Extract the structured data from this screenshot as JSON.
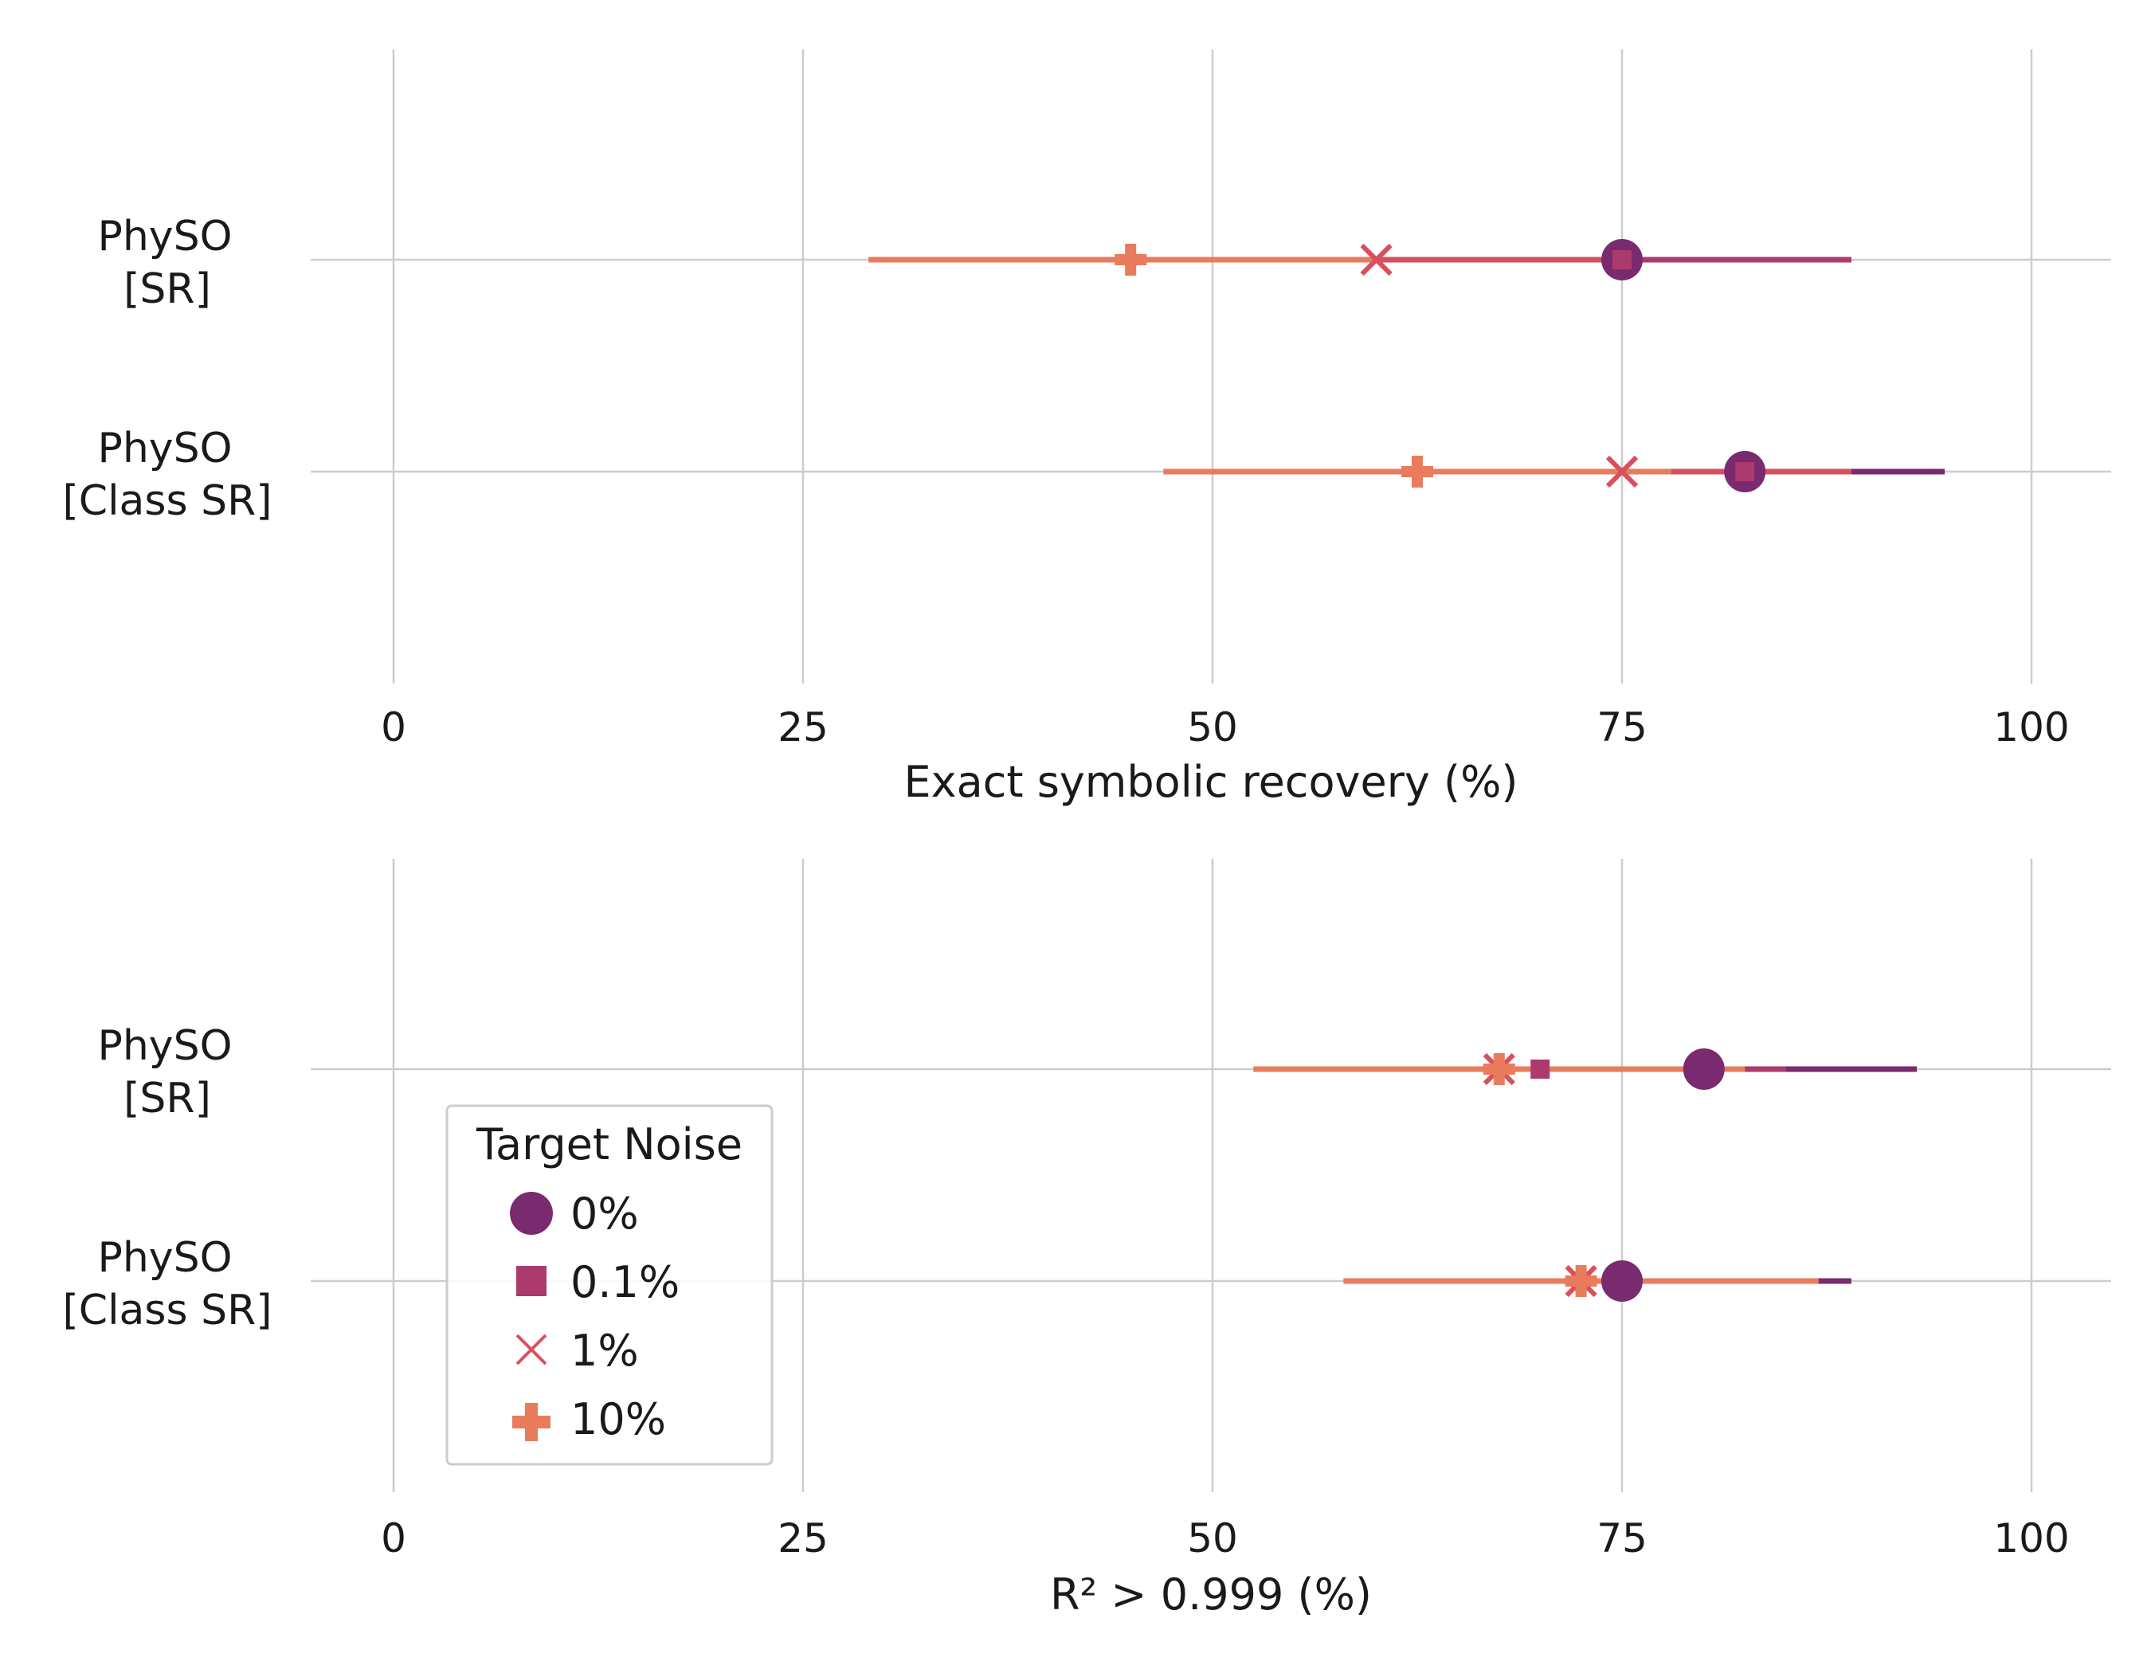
{
  "legend": {
    "title": "Target Noise",
    "location": "lower-left of bottom panel",
    "entries": [
      {
        "label": "0%",
        "marker": "circle",
        "color": "#7a2a6e"
      },
      {
        "label": "0.1%",
        "marker": "square",
        "color": "#ad3a6d"
      },
      {
        "label": "1%",
        "marker": "x",
        "color": "#d8505c"
      },
      {
        "label": "10%",
        "marker": "plus",
        "color": "#e87c5c"
      }
    ]
  },
  "chart_data": [
    {
      "type": "scatter",
      "orientation": "horizontal",
      "xlabel": "Exact symbolic recovery (%)",
      "xlim": [
        -5,
        105
      ],
      "xticks": [
        "0",
        "25",
        "50",
        "75",
        "100"
      ],
      "categories": [
        [
          "PhySO",
          "[SR]"
        ],
        [
          "PhySO",
          "[Class SR]"
        ]
      ],
      "grid": true,
      "series": [
        {
          "name": "0%",
          "values": [
            75,
            82.5
          ],
          "err_low": [
            61,
            70
          ],
          "err_high": [
            89,
            94.7
          ]
        },
        {
          "name": "0.1%",
          "values": [
            75,
            82.5
          ],
          "err_low": [
            61,
            70
          ],
          "err_high": [
            89,
            89
          ]
        },
        {
          "name": "1%",
          "values": [
            60,
            75
          ],
          "err_low": [
            45,
            62
          ],
          "err_high": [
            75,
            89
          ]
        },
        {
          "name": "10%",
          "values": [
            45,
            62.5
          ],
          "err_low": [
            29,
            47
          ],
          "err_high": [
            60,
            78
          ]
        }
      ]
    },
    {
      "type": "scatter",
      "orientation": "horizontal",
      "xlabel": "R² > 0.999 (%)",
      "xlim": [
        -5,
        105
      ],
      "xticks": [
        "0",
        "25",
        "50",
        "75",
        "100"
      ],
      "categories": [
        [
          "PhySO",
          "[SR]"
        ],
        [
          "PhySO",
          "[Class SR]"
        ]
      ],
      "grid": true,
      "series": [
        {
          "name": "0%",
          "values": [
            80,
            75
          ],
          "err_low": [
            67,
            58
          ],
          "err_high": [
            93,
            89
          ]
        },
        {
          "name": "0.1%",
          "values": [
            70,
            72.5
          ],
          "err_low": [
            55,
            58
          ],
          "err_high": [
            85,
            87
          ]
        },
        {
          "name": "1%",
          "values": [
            67.5,
            72.5
          ],
          "err_low": [
            52.5,
            58
          ],
          "err_high": [
            82.5,
            87
          ]
        },
        {
          "name": "10%",
          "values": [
            67.5,
            72.5
          ],
          "err_low": [
            52.5,
            58
          ],
          "err_high": [
            82.5,
            87
          ]
        }
      ]
    }
  ]
}
